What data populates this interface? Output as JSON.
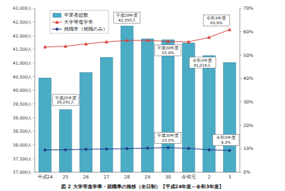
{
  "chart_data": {
    "type": "bar",
    "title": "図 2 大学等進学率・就職率の推移（全日制）【平成24年度～令和3年度】",
    "categories": [
      "平成24",
      "25",
      "26",
      "27",
      "28",
      "29",
      "30",
      "令和元",
      "2",
      "3"
    ],
    "series": [
      {
        "name": "卒業者総数",
        "type": "bar",
        "color": "#4bacc6",
        "values": [
          40450,
          39291,
          40650,
          41200,
          42350,
          41880,
          41850,
          41730,
          41270,
          41016
        ]
      },
      {
        "name": "大学等進学率",
        "type": "line",
        "color": "#d9453e",
        "marker": "triangle",
        "line_style": "solid",
        "axis": "y2",
        "values": [
          53.5,
          53.8,
          54.8,
          55.7,
          56.3,
          56.3,
          55.9,
          55.7,
          57.6,
          60.9
        ]
      },
      {
        "name": "就職率（就職のみ）",
        "type": "line",
        "color": "#1f3a8a",
        "marker": "diamond",
        "line_style": "solid",
        "axis": "y2",
        "values": [
          9.5,
          9.6,
          9.8,
          9.9,
          10.1,
          10.3,
          10.5,
          10.2,
          9.6,
          9.3
        ]
      }
    ],
    "ylim": [
      37000,
      43000
    ],
    "yticks": [
      {
        "value": 37000,
        "label": "37,000人"
      },
      {
        "value": 37500,
        "label": "37,500人"
      },
      {
        "value": 38000,
        "label": "38,000人"
      },
      {
        "value": 38500,
        "label": "38,500人"
      },
      {
        "value": 39000,
        "label": "39,000人"
      },
      {
        "value": 39500,
        "label": "39,500人"
      },
      {
        "value": 40000,
        "label": "40,000人"
      },
      {
        "value": 40500,
        "label": "40,500人"
      },
      {
        "value": 41000,
        "label": "41,000人"
      },
      {
        "value": 41500,
        "label": "41,500人"
      },
      {
        "value": 42000,
        "label": "42,000人"
      },
      {
        "value": 42500,
        "label": "42,500人"
      },
      {
        "value": 43000,
        "label": "43,000人"
      }
    ],
    "y2lim": [
      0,
      70
    ],
    "y2ticks": [
      {
        "value": 0,
        "label": "0%"
      },
      {
        "value": 10,
        "label": "10%"
      },
      {
        "value": 20,
        "label": "20%"
      },
      {
        "value": 30,
        "label": "30%"
      },
      {
        "value": 40,
        "label": "40%"
      },
      {
        "value": 50,
        "label": "50%"
      },
      {
        "value": 60,
        "label": "60%"
      },
      {
        "value": 70,
        "label": "70%"
      }
    ],
    "legend": "upper left",
    "grid": false,
    "annotations": [
      {
        "category": "25",
        "series": "卒業者総数",
        "lines": [
          "平成25年度",
          "39,291人"
        ]
      },
      {
        "category": "28",
        "series": "卒業者総数",
        "lines": [
          "平成28年度",
          "42,350人"
        ]
      },
      {
        "category": "30",
        "series": "大学等進学率",
        "lines": [
          "平成30年度",
          "55.9%"
        ]
      },
      {
        "category": "30",
        "series": "就職率（就職のみ）",
        "lines": [
          "平成30年度",
          "10.5%"
        ]
      },
      {
        "category": "3",
        "series": "大学等進学率",
        "lines": [
          "令和3年度",
          "60.9%"
        ]
      },
      {
        "category": "3",
        "series": "就職率（就職のみ）",
        "lines": [
          "令和3年度",
          "9.3%"
        ]
      },
      {
        "category": "3",
        "series": "卒業者総数",
        "lines": [
          "令和3年度",
          "41,016人"
        ]
      }
    ]
  }
}
